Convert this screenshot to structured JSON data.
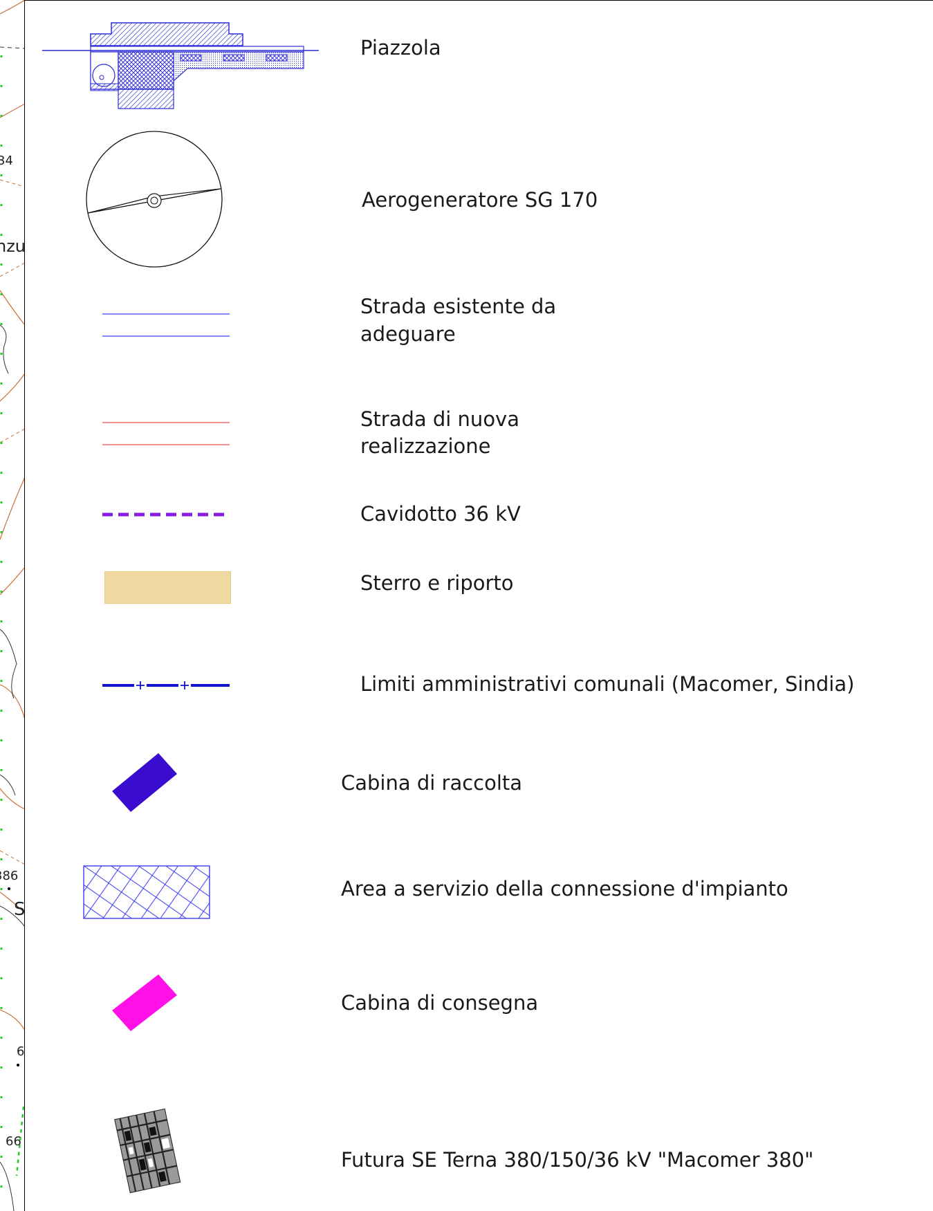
{
  "map_fragment": {
    "labels": [
      "34",
      "nzu",
      "386",
      "S",
      "6",
      "66"
    ]
  },
  "legend": {
    "items": [
      {
        "id": "piazzola",
        "label": "Piazzola"
      },
      {
        "id": "aerogeneratore",
        "label": "Aerogeneratore SG 170"
      },
      {
        "id": "strada-esistente",
        "label": "Strada esistente da\nadeguare",
        "line1": "Strada esistente da",
        "line2": "adeguare"
      },
      {
        "id": "strada-nuova",
        "label": "Strada di nuova\nrealizzazione",
        "line1": "Strada di nuova",
        "line2": "realizzazione"
      },
      {
        "id": "cavidotto",
        "label": "Cavidotto 36 kV"
      },
      {
        "id": "sterro",
        "label": "Sterro e riporto"
      },
      {
        "id": "limiti",
        "label": "Limiti amministrativi comunali (Macomer, Sindia)"
      },
      {
        "id": "cabina-raccolta",
        "label": "Cabina di raccolta"
      },
      {
        "id": "area-servizio",
        "label": "Area a servizio della connessione d'impianto"
      },
      {
        "id": "cabina-consegna",
        "label": "Cabina di consegna"
      },
      {
        "id": "futura-se",
        "label": "Futura SE Terna 380/150/36 kV \"Macomer 380\""
      }
    ]
  },
  "colors": {
    "blue_symbol": "#2b2bd6",
    "road_existing": "#3d3df0",
    "road_new": "#f05050",
    "cavidotto": "#8a1ee0",
    "sterro_fill": "#f0d9a0",
    "limiti": "#1414d0",
    "cabina_raccolta": "#3a0ccf",
    "area_servizio": "#3d3df0",
    "cabina_consegna": "#ff10e6",
    "contour": "#c8703a",
    "green_dash": "#28c828"
  }
}
